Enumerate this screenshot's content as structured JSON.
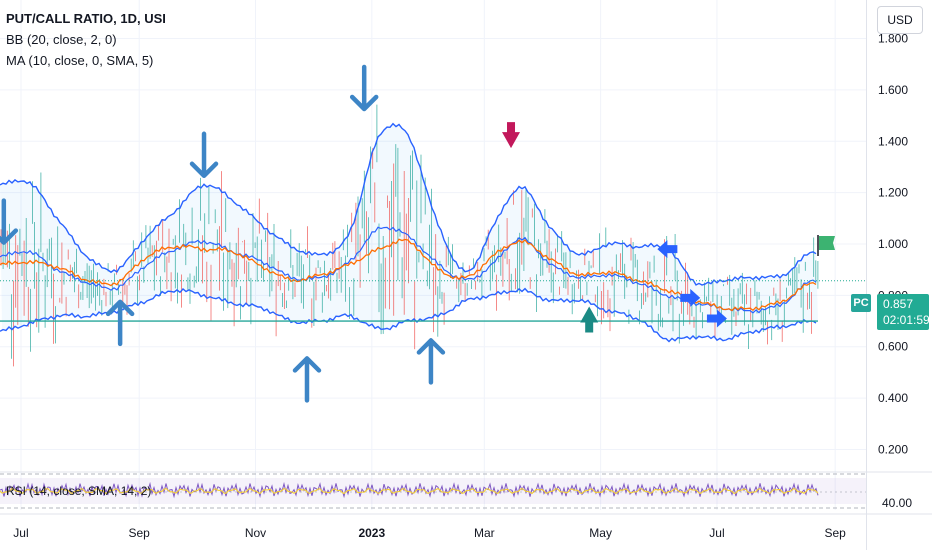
{
  "header": {
    "title": "PUT/CALL RATIO, 1D, USI",
    "indicators": [
      "BB (20, close, 2, 0)",
      "MA (10, close, 0, SMA, 5)"
    ]
  },
  "currency_button": "USD",
  "last_value": {
    "symbol": "PC",
    "value": "0.857",
    "countdown": "02:01:59"
  },
  "rsi_label": "RSI (14, close, SMA, 14, 2)",
  "colors": {
    "up_candle": "#26a69a",
    "down_candle": "#ef5350",
    "bb_band": "#2962ff",
    "ma": "#ff6d00",
    "arrow_blue": "#3d85c6",
    "arrow_red": "#c2185b",
    "arrow_teal": "#1b8a84",
    "flag": "#3cb371"
  },
  "chart_data": {
    "type": "line",
    "x": [
      "2022-06-20",
      "2022-07-05",
      "2022-07-20",
      "2022-08-05",
      "2022-08-20",
      "2022-09-05",
      "2022-09-20",
      "2022-10-05",
      "2022-10-20",
      "2022-11-05",
      "2022-11-20",
      "2022-12-05",
      "2022-12-20",
      "2023-01-05",
      "2023-01-20",
      "2023-02-05",
      "2023-02-20",
      "2023-03-05",
      "2023-03-20",
      "2023-04-05",
      "2023-04-20",
      "2023-05-05",
      "2023-05-20",
      "2023-06-05",
      "2023-06-20",
      "2023-07-05",
      "2023-07-20",
      "2023-08-05",
      "2023-08-20"
    ],
    "series": [
      {
        "name": "",
        "values": [
          1.23,
          1.24,
          1.1,
          0.95,
          0.9,
          1.03,
          1.13,
          1.23,
          1.17,
          1.07,
          0.99,
          0.96,
          1.04,
          1.42,
          1.42,
          1.07,
          0.89,
          1.06,
          1.22,
          1.06,
          0.96,
          1.0,
          0.99,
          0.98,
          0.85,
          0.86,
          0.87,
          0.88,
          0.97
        ]
      },
      {
        "name": "",
        "values": [
          0.95,
          0.97,
          0.9,
          0.85,
          0.83,
          0.92,
          0.98,
          1.01,
          0.97,
          0.93,
          0.87,
          0.87,
          0.93,
          1.06,
          1.03,
          0.92,
          0.86,
          0.92,
          1.02,
          0.92,
          0.87,
          0.88,
          0.85,
          0.8,
          0.77,
          0.75,
          0.74,
          0.77,
          0.86
        ]
      },
      {
        "name": "",
        "values": [
          0.66,
          0.69,
          0.72,
          0.72,
          0.74,
          0.78,
          0.82,
          0.8,
          0.77,
          0.75,
          0.7,
          0.7,
          0.72,
          0.67,
          0.7,
          0.72,
          0.78,
          0.8,
          0.82,
          0.78,
          0.78,
          0.74,
          0.71,
          0.63,
          0.64,
          0.63,
          0.66,
          0.68,
          0.7
        ]
      },
      {
        "name": "",
        "values": [
          0.92,
          0.93,
          0.91,
          0.86,
          0.85,
          0.95,
          0.99,
          0.98,
          0.97,
          0.91,
          0.86,
          0.88,
          0.92,
          0.98,
          1.01,
          0.9,
          0.87,
          0.95,
          1.01,
          0.94,
          0.88,
          0.89,
          0.86,
          0.82,
          0.78,
          0.75,
          0.75,
          0.78,
          0.85
        ]
      }
    ],
    "yticks": [
      "0.200",
      "0.400",
      "0.600",
      "0.800",
      "1.000",
      "1.200",
      "1.400",
      "1.600",
      "1.800"
    ],
    "xticks": [
      {
        "label": "Jul",
        "x": "2022-07-01"
      },
      {
        "label": "Sep",
        "x": "2022-09-01"
      },
      {
        "label": "Nov",
        "x": "2022-11-01"
      },
      {
        "label": "2023",
        "x": "2023-01-01"
      },
      {
        "label": "Mar",
        "x": "2023-03-01"
      },
      {
        "label": "May",
        "x": "2023-05-01"
      },
      {
        "label": "Jul",
        "x": "2023-07-01"
      },
      {
        "label": "Sep",
        "x": "2023-09-01"
      }
    ],
    "ylim": [
      0.12,
      1.95
    ],
    "horizontal_line": 0.7,
    "rsi_tick": "40.00",
    "annotations": [
      {
        "type": "arrow-down",
        "x": "2022-06-22",
        "y": 1.06,
        "color": "blue"
      },
      {
        "type": "arrow-up",
        "x": "2022-08-22",
        "y": 0.72,
        "color": "blue"
      },
      {
        "type": "arrow-down",
        "x": "2022-10-05",
        "y": 1.32,
        "color": "blue"
      },
      {
        "type": "arrow-up",
        "x": "2022-11-28",
        "y": 0.5,
        "color": "blue"
      },
      {
        "type": "arrow-down",
        "x": "2022-12-28",
        "y": 1.58,
        "color": "blue"
      },
      {
        "type": "arrow-up",
        "x": "2023-02-01",
        "y": 0.57,
        "color": "blue"
      },
      {
        "type": "arrow-down",
        "x": "2023-03-15",
        "y": 1.42,
        "color": "red"
      },
      {
        "type": "arrow-up",
        "x": "2023-04-25",
        "y": 0.71,
        "color": "teal"
      },
      {
        "type": "arrow-left",
        "x": "2023-06-05",
        "y": 0.98,
        "color": "blue"
      },
      {
        "type": "arrow-right",
        "x": "2023-06-17",
        "y": 0.79,
        "color": "blue"
      },
      {
        "type": "arrow-right",
        "x": "2023-07-01",
        "y": 0.71,
        "color": "blue"
      },
      {
        "type": "flag",
        "x": "2023-08-23",
        "y": 1.0,
        "color": "green"
      }
    ]
  }
}
